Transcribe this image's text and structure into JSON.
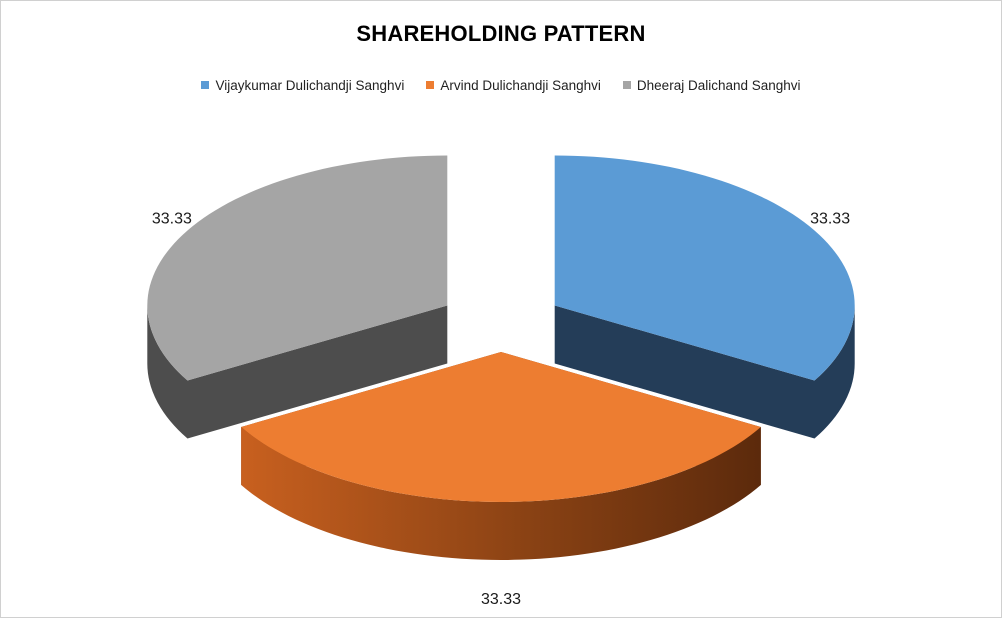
{
  "chart_data": {
    "type": "pie",
    "title": "SHAREHOLDING PATTERN",
    "categories": [
      "Vijaykumar Dulichandji Sanghvi",
      "Arvind Dulichandji Sanghvi",
      "Dheeraj Dalichand Sanghvi"
    ],
    "values": [
      33.33,
      33.33,
      33.33
    ],
    "data_labels": [
      "33.33",
      "33.33",
      "33.33"
    ],
    "colors": [
      "#5b9bd5",
      "#ed7d31",
      "#a5a5a5"
    ],
    "side_colors": [
      "#243d58",
      "#7a3a12",
      "#4d4d4d"
    ],
    "style": "3d-exploded",
    "legend_position": "top"
  }
}
